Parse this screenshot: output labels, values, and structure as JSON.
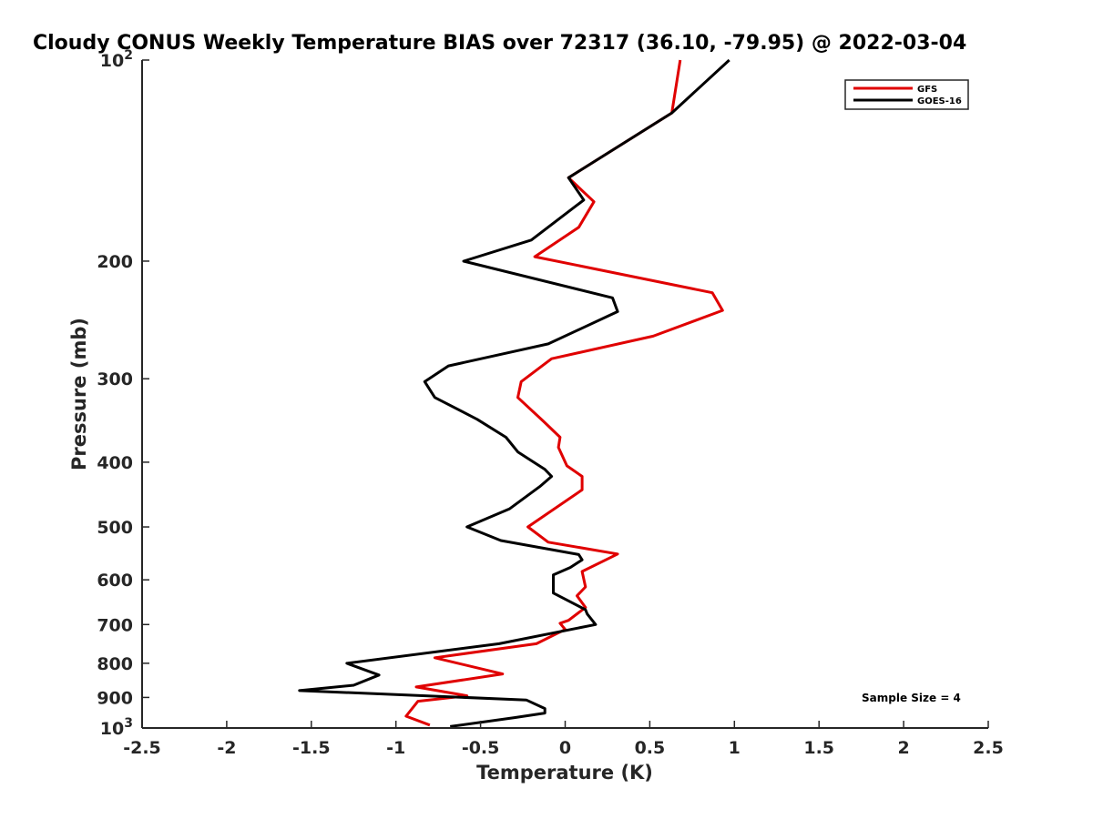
{
  "chart_data": {
    "type": "line",
    "title": "Cloudy CONUS Weekly Temperature BIAS over 72317 (36.10, -79.95) @ 2022-03-04",
    "xlabel": "Temperature (K)",
    "ylabel": "Pressure (mb)",
    "xlim": [
      -2.5,
      2.5
    ],
    "ylim": [
      100,
      1000
    ],
    "yscale": "log",
    "y_reversed": true,
    "grid": false,
    "legend_position": "top-right",
    "x_ticks": [
      "-2.5",
      "-2",
      "-1.5",
      "-1",
      "-0.5",
      "0",
      "0.5",
      "1",
      "1.5",
      "2",
      "2.5"
    ],
    "y_ticks": [
      {
        "value": 200,
        "label": "200"
      },
      {
        "value": 300,
        "label": "300"
      },
      {
        "value": 400,
        "label": "400"
      },
      {
        "value": 500,
        "label": "500"
      },
      {
        "value": 600,
        "label": "600"
      },
      {
        "value": 700,
        "label": "700"
      },
      {
        "value": 800,
        "label": "800"
      },
      {
        "value": 900,
        "label": "900"
      }
    ],
    "y_decade_ticks": [
      {
        "value": 100,
        "base": "10",
        "exp": "2"
      },
      {
        "value": 1000,
        "base": "10",
        "exp": "3"
      }
    ],
    "annotation": "Sample Size = 4",
    "series": [
      {
        "name": "GFS",
        "color": "#e00000",
        "points": [
          [
            0.68,
            100
          ],
          [
            0.63,
            120
          ],
          [
            0.02,
            150
          ],
          [
            0.17,
            163
          ],
          [
            0.08,
            178
          ],
          [
            -0.18,
            197
          ],
          [
            0.87,
            223
          ],
          [
            0.93,
            237
          ],
          [
            0.52,
            259
          ],
          [
            -0.08,
            280
          ],
          [
            -0.26,
            303
          ],
          [
            -0.28,
            320
          ],
          [
            -0.13,
            347
          ],
          [
            -0.03,
            367
          ],
          [
            -0.04,
            380
          ],
          [
            0.01,
            405
          ],
          [
            0.1,
            420
          ],
          [
            0.1,
            440
          ],
          [
            -0.22,
            500
          ],
          [
            -0.1,
            527
          ],
          [
            0.31,
            549
          ],
          [
            0.1,
            583
          ],
          [
            0.12,
            615
          ],
          [
            0.07,
            634
          ],
          [
            0.12,
            660
          ],
          [
            0.02,
            690
          ],
          [
            -0.03,
            697
          ],
          [
            0.0,
            712
          ],
          [
            -0.17,
            748
          ],
          [
            -0.77,
            785
          ],
          [
            -0.37,
            830
          ],
          [
            -0.88,
            868
          ],
          [
            -0.58,
            895
          ],
          [
            -0.87,
            912
          ],
          [
            -0.94,
            960
          ],
          [
            -0.8,
            990
          ]
        ]
      },
      {
        "name": "GOES-16",
        "color": "#000000",
        "points": [
          [
            0.97,
            100
          ],
          [
            0.63,
            120
          ],
          [
            0.02,
            150
          ],
          [
            0.11,
            162
          ],
          [
            -0.2,
            186
          ],
          [
            -0.6,
            200
          ],
          [
            0.28,
            227
          ],
          [
            0.31,
            238
          ],
          [
            -0.1,
            266
          ],
          [
            -0.69,
            287
          ],
          [
            -0.83,
            303
          ],
          [
            -0.77,
            320
          ],
          [
            -0.52,
            345
          ],
          [
            -0.35,
            367
          ],
          [
            -0.28,
            386
          ],
          [
            -0.12,
            410
          ],
          [
            -0.08,
            420
          ],
          [
            -0.15,
            435
          ],
          [
            -0.33,
            470
          ],
          [
            -0.58,
            500
          ],
          [
            -0.38,
            524
          ],
          [
            0.08,
            550
          ],
          [
            0.1,
            560
          ],
          [
            0.03,
            575
          ],
          [
            -0.07,
            590
          ],
          [
            -0.07,
            628
          ],
          [
            0.12,
            665
          ],
          [
            0.13,
            675
          ],
          [
            0.18,
            700
          ],
          [
            -0.39,
            748
          ],
          [
            -1.29,
            800
          ],
          [
            -1.1,
            833
          ],
          [
            -1.25,
            863
          ],
          [
            -1.57,
            879
          ],
          [
            -0.23,
            908
          ],
          [
            -0.12,
            935
          ],
          [
            -0.12,
            950
          ],
          [
            -0.3,
            965
          ],
          [
            -0.68,
            995
          ]
        ]
      }
    ]
  }
}
